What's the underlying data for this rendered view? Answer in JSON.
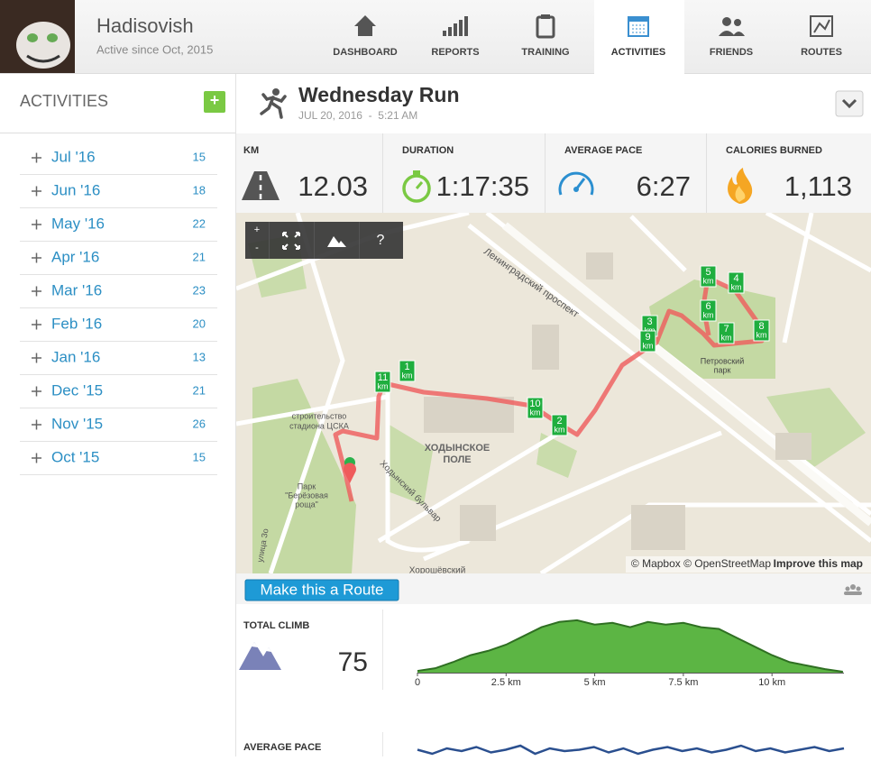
{
  "user": {
    "name": "Hadisovish",
    "since": "Active since Oct, 2015"
  },
  "nav": [
    "DASHBOARD",
    "REPORTS",
    "TRAINING",
    "ACTIVITIES",
    "FRIENDS",
    "ROUTES"
  ],
  "sidebar": {
    "title": "ACTIVITIES",
    "add": "+",
    "months": [
      {
        "label": "Jul '16",
        "count": 15
      },
      {
        "label": "Jun '16",
        "count": 18
      },
      {
        "label": "May '16",
        "count": 22
      },
      {
        "label": "Apr '16",
        "count": 21
      },
      {
        "label": "Mar '16",
        "count": 23
      },
      {
        "label": "Feb '16",
        "count": 20
      },
      {
        "label": "Jan '16",
        "count": 13
      },
      {
        "label": "Dec '15",
        "count": 21
      },
      {
        "label": "Nov '15",
        "count": 26
      },
      {
        "label": "Oct '15",
        "count": 15
      }
    ]
  },
  "activity": {
    "title": "Wednesday Run",
    "date": "JUL 20, 2016  -  5:21 AM",
    "stats": [
      {
        "label": "KM",
        "value": "12.03"
      },
      {
        "label": "DURATION",
        "value": "1:17:35"
      },
      {
        "label": "AVERAGE PACE",
        "value": "6:27"
      },
      {
        "label": "CALORIES BURNED",
        "value": "1,113"
      }
    ]
  },
  "map": {
    "controls": [
      "+",
      "-",
      "?"
    ],
    "labels": [
      "Ленинградский проспект",
      "ХОДЫНСКОЕ",
      "ПОЛЕ",
      "строительство",
      "стадиона ЦСКА",
      "Парк",
      "\"Берёзовая",
      "роща\"",
      "Ходынский бульвар",
      "Петровский",
      "парк",
      "улица Зо",
      "Хорошёвский"
    ],
    "markers": [
      "1",
      "2",
      "3",
      "4",
      "5",
      "6",
      "7",
      "8",
      "9",
      "10",
      "11"
    ],
    "marker_unit": "km",
    "attribution": "© Mapbox © OpenStreetMap",
    "improve": "Improve this map"
  },
  "route_button": "Make this a Route",
  "climb": {
    "label": "TOTAL CLIMB",
    "value": 75
  },
  "elevation": {
    "x": [
      0,
      0.5,
      1,
      1.5,
      2,
      2.5,
      3,
      3.5,
      4,
      4.5,
      5,
      5.5,
      6,
      6.5,
      7,
      7.5,
      8,
      8.5,
      9,
      9.5,
      10,
      10.5,
      11,
      11.5,
      12
    ],
    "values": [
      2,
      5,
      12,
      20,
      25,
      32,
      42,
      52,
      58,
      60,
      55,
      57,
      52,
      58,
      55,
      57,
      52,
      50,
      40,
      30,
      20,
      12,
      8,
      4,
      1
    ],
    "xlim": [
      0,
      12.03
    ],
    "ylim": [
      0,
      65
    ],
    "xticks": [
      0,
      {
        "value": 2.5,
        "label": "2.5 km"
      },
      {
        "value": 5,
        "label": "5 km"
      },
      {
        "value": 7.5,
        "label": "7.5 km"
      },
      {
        "value": 10,
        "label": "10 km"
      }
    ]
  },
  "pace": {
    "label": "AVERAGE PACE",
    "values": [
      6.5,
      6.2,
      6.6,
      6.4,
      6.7,
      6.3,
      6.5,
      6.8,
      6.2,
      6.6,
      6.4,
      6.5,
      6.7,
      6.3,
      6.6,
      6.2,
      6.5,
      6.7,
      6.4,
      6.6,
      6.3,
      6.5,
      6.8,
      6.4,
      6.6,
      6.3,
      6.5,
      6.7,
      6.4,
      6.6
    ],
    "ylim": [
      6,
      7
    ]
  }
}
